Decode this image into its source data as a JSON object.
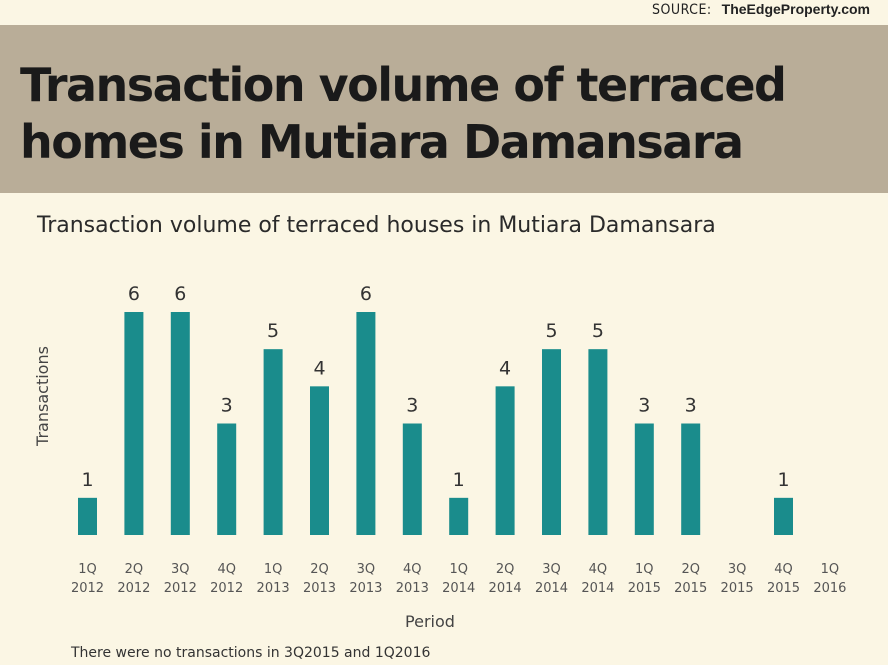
{
  "source": {
    "label": "SOURCE:",
    "value": "TheEdgeProperty.com"
  },
  "headline": "Transaction volume of terraced homes in Mutiara Damansara",
  "footnote": "There were no transactions in 3Q2015 and 1Q2016",
  "colors": {
    "bar": "#1a8c8c",
    "banner": "#b9ad98",
    "background": "#fbf6e4"
  },
  "chart_data": {
    "type": "bar",
    "title": "Transaction volume of terraced houses in Mutiara Damansara",
    "xlabel": "Period",
    "ylabel": "Transactions",
    "categories": [
      [
        "1Q",
        "2012"
      ],
      [
        "2Q",
        "2012"
      ],
      [
        "3Q",
        "2012"
      ],
      [
        "4Q",
        "2012"
      ],
      [
        "1Q",
        "2013"
      ],
      [
        "2Q",
        "2013"
      ],
      [
        "3Q",
        "2013"
      ],
      [
        "4Q",
        "2013"
      ],
      [
        "1Q",
        "2014"
      ],
      [
        "2Q",
        "2014"
      ],
      [
        "3Q",
        "2014"
      ],
      [
        "4Q",
        "2014"
      ],
      [
        "1Q",
        "2015"
      ],
      [
        "2Q",
        "2015"
      ],
      [
        "3Q",
        "2015"
      ],
      [
        "4Q",
        "2015"
      ],
      [
        "1Q",
        "2016"
      ]
    ],
    "values": [
      1,
      6,
      6,
      3,
      5,
      4,
      6,
      3,
      1,
      4,
      5,
      5,
      3,
      3,
      0,
      1,
      0
    ],
    "data_labels": [
      "1",
      "6",
      "6",
      "3",
      "5",
      "4",
      "6",
      "3",
      "1",
      "4",
      "5",
      "5",
      "3",
      "3",
      "",
      "1",
      ""
    ],
    "ylim": [
      0,
      6
    ],
    "grid": false,
    "legend": "none"
  }
}
